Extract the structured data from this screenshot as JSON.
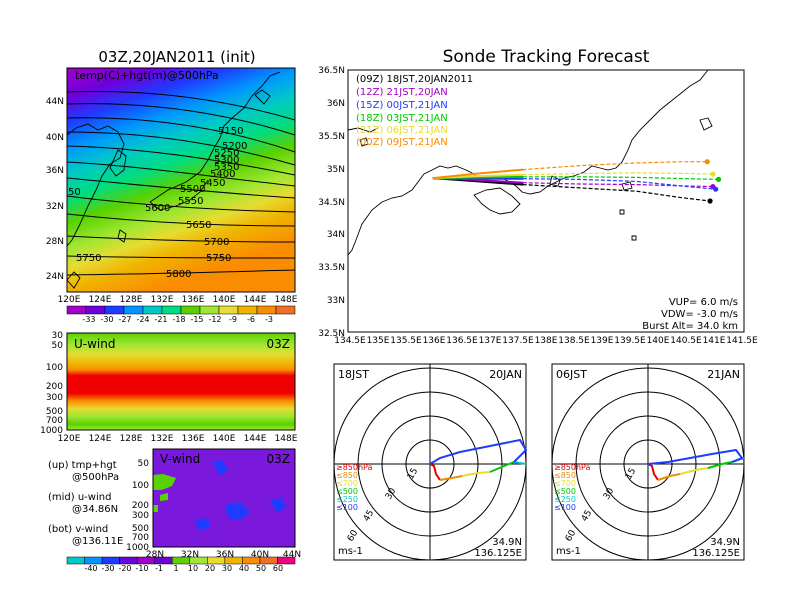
{
  "left_panel": {
    "title": "03Z,20JAN2011 (init)",
    "map_label": "temp(C)+hgt(m)@500hPa",
    "lat_ticks": [
      "44N",
      "40N",
      "36N",
      "32N",
      "28N",
      "24N"
    ],
    "lon_ticks": [
      "120E",
      "124E",
      "128E",
      "132E",
      "136E",
      "140E",
      "144E",
      "148E"
    ],
    "contour_labels": [
      "5150",
      "5200",
      "5250",
      "5300",
      "5350",
      "5400",
      "5450",
      "5500",
      "5550",
      "5600",
      "5650",
      "5700",
      "5750",
      "5750",
      "5800",
      "50"
    ],
    "temp_colorbar": [
      "-33",
      "-30",
      "-27",
      "-24",
      "-21",
      "-18",
      "-15",
      "-12",
      "-9",
      "-6",
      "-3"
    ],
    "temp_colors": [
      "#a000c8",
      "#6e00dc",
      "#1e3cff",
      "#0096ff",
      "#00c8c8",
      "#00dc82",
      "#5ad200",
      "#a0e632",
      "#e6dc32",
      "#f0b400",
      "#fa8c00",
      "#f06e28"
    ],
    "uwind": {
      "label": "U-wind",
      "time": "03Z",
      "p_ticks": [
        "30",
        "50",
        "100",
        "200",
        "300",
        "500",
        "700",
        "1000"
      ],
      "lon_ticks": [
        "120E",
        "124E",
        "128E",
        "132E",
        "136E",
        "140E",
        "144E",
        "148E"
      ]
    },
    "vwind": {
      "label": "V-wind",
      "time": "03Z",
      "p_ticks": [
        "50",
        "100",
        "200",
        "300",
        "500",
        "700",
        "1000"
      ],
      "lat_ticks": [
        "28N",
        "32N",
        "36N",
        "40N",
        "44N"
      ]
    },
    "legend_text": [
      "(up) tmp+hgt",
      "@500hPa",
      "(mid) u-wind",
      "@34.86N",
      "(bot) v-wind",
      "@136.11E"
    ],
    "wind_colorbar": [
      "-40",
      "-30",
      "-20",
      "-10",
      "-1",
      "1",
      "10",
      "20",
      "30",
      "40",
      "50",
      "60"
    ],
    "wind_colors": [
      "#00c8c8",
      "#0096ff",
      "#1e3cff",
      "#6e00dc",
      "#a000c8",
      "#6e00dc",
      "#5ad200",
      "#a0e632",
      "#e6dc32",
      "#f0b400",
      "#fa8c00",
      "#f06e28",
      "#f00082"
    ]
  },
  "tracking": {
    "title": "Sonde Tracking Forecast",
    "legend": [
      {
        "text": "(09Z)  18JST,20JAN2011",
        "color": "#000000"
      },
      {
        "text": "(12Z)  21JST,20JAN",
        "color": "#a000c8"
      },
      {
        "text": "(15Z)  00JST,21JAN",
        "color": "#1e3cff"
      },
      {
        "text": "(18Z)  03JST,21JAN",
        "color": "#00c800"
      },
      {
        "text": "(21Z)  06JST,21JAN",
        "color": "#e6dc32"
      },
      {
        "text": "(00Z)  09JST,21JAN",
        "color": "#fa8c00"
      }
    ],
    "lat_ticks": [
      "36.5N",
      "36N",
      "35.5N",
      "35N",
      "34.5N",
      "34N",
      "33.5N",
      "33N",
      "32.5N"
    ],
    "lon_ticks": [
      "134.5E",
      "135E",
      "135.5E",
      "136E",
      "136.5E",
      "137E",
      "137.5E",
      "138E",
      "138.5E",
      "139E",
      "139.5E",
      "140E",
      "140.5E",
      "141E",
      "141.5E"
    ],
    "params": [
      "VUP=  6.0  m/s",
      "VDW= -3.0  m/s",
      "Burst Alt=  34.0  km"
    ],
    "chart_data": {
      "type": "line",
      "xlim": [
        134.5,
        141.5
      ],
      "ylim": [
        32.5,
        36.5
      ],
      "series": [
        {
          "color": "#000000",
          "x": [
            136.0,
            136.8,
            137.6,
            138.6,
            139.6,
            140.4,
            140.9
          ],
          "y": [
            34.85,
            34.8,
            34.75,
            34.7,
            34.65,
            34.55,
            34.5
          ]
        },
        {
          "color": "#a000c8",
          "x": [
            136.0,
            136.8,
            137.6,
            138.6,
            139.6,
            140.4,
            140.95
          ],
          "y": [
            34.85,
            34.82,
            34.78,
            34.76,
            34.75,
            34.73,
            34.72
          ]
        },
        {
          "color": "#1e3cff",
          "x": [
            136.0,
            136.8,
            137.6,
            138.6,
            139.6,
            140.5,
            141.0
          ],
          "y": [
            34.85,
            34.84,
            34.84,
            34.83,
            34.8,
            34.72,
            34.68
          ]
        },
        {
          "color": "#00c800",
          "x": [
            136.0,
            136.8,
            137.6,
            138.6,
            139.6,
            140.5,
            141.05
          ],
          "y": [
            34.85,
            34.86,
            34.87,
            34.87,
            34.86,
            34.84,
            34.83
          ]
        },
        {
          "color": "#e6dc32",
          "x": [
            136.0,
            136.8,
            137.6,
            138.6,
            139.6,
            140.5,
            140.95
          ],
          "y": [
            34.85,
            34.88,
            34.9,
            34.92,
            34.93,
            34.92,
            34.91
          ]
        },
        {
          "color": "#fa8c00",
          "x": [
            136.0,
            136.8,
            137.6,
            138.6,
            139.6,
            140.4,
            140.85
          ],
          "y": [
            34.85,
            34.92,
            34.98,
            35.04,
            35.08,
            35.1,
            35.1
          ]
        }
      ]
    }
  },
  "hodo_left": {
    "time": "18JST",
    "date": "20JAN",
    "ring_labels": [
      "15",
      "30",
      "45",
      "60"
    ],
    "levels": [
      {
        "text": "≥850hPa",
        "color": "#e60000"
      },
      {
        "text": "≤850",
        "color": "#f08c00"
      },
      {
        "text": "≤700",
        "color": "#e6dc32"
      },
      {
        "text": "≤500",
        "color": "#00c800"
      },
      {
        "text": "≤250",
        "color": "#00c8c8"
      },
      {
        "text": "≤100",
        "color": "#1e3cff"
      }
    ],
    "units": "ms-1",
    "loc_lat": "34.9N",
    "loc_lon": "136.125E"
  },
  "hodo_right": {
    "time": "06JST",
    "date": "21JAN",
    "ring_labels": [
      "15",
      "30",
      "45",
      "60"
    ],
    "levels": [
      {
        "text": "≥850hPa",
        "color": "#e60000"
      },
      {
        "text": "≤850",
        "color": "#f08c00"
      },
      {
        "text": "≤700",
        "color": "#e6dc32"
      },
      {
        "text": "≤500",
        "color": "#00c800"
      },
      {
        "text": "≤250",
        "color": "#00c8c8"
      },
      {
        "text": "≤100",
        "color": "#1e3cff"
      }
    ],
    "units": "ms-1",
    "loc_lat": "34.9N",
    "loc_lon": "136.125E"
  }
}
